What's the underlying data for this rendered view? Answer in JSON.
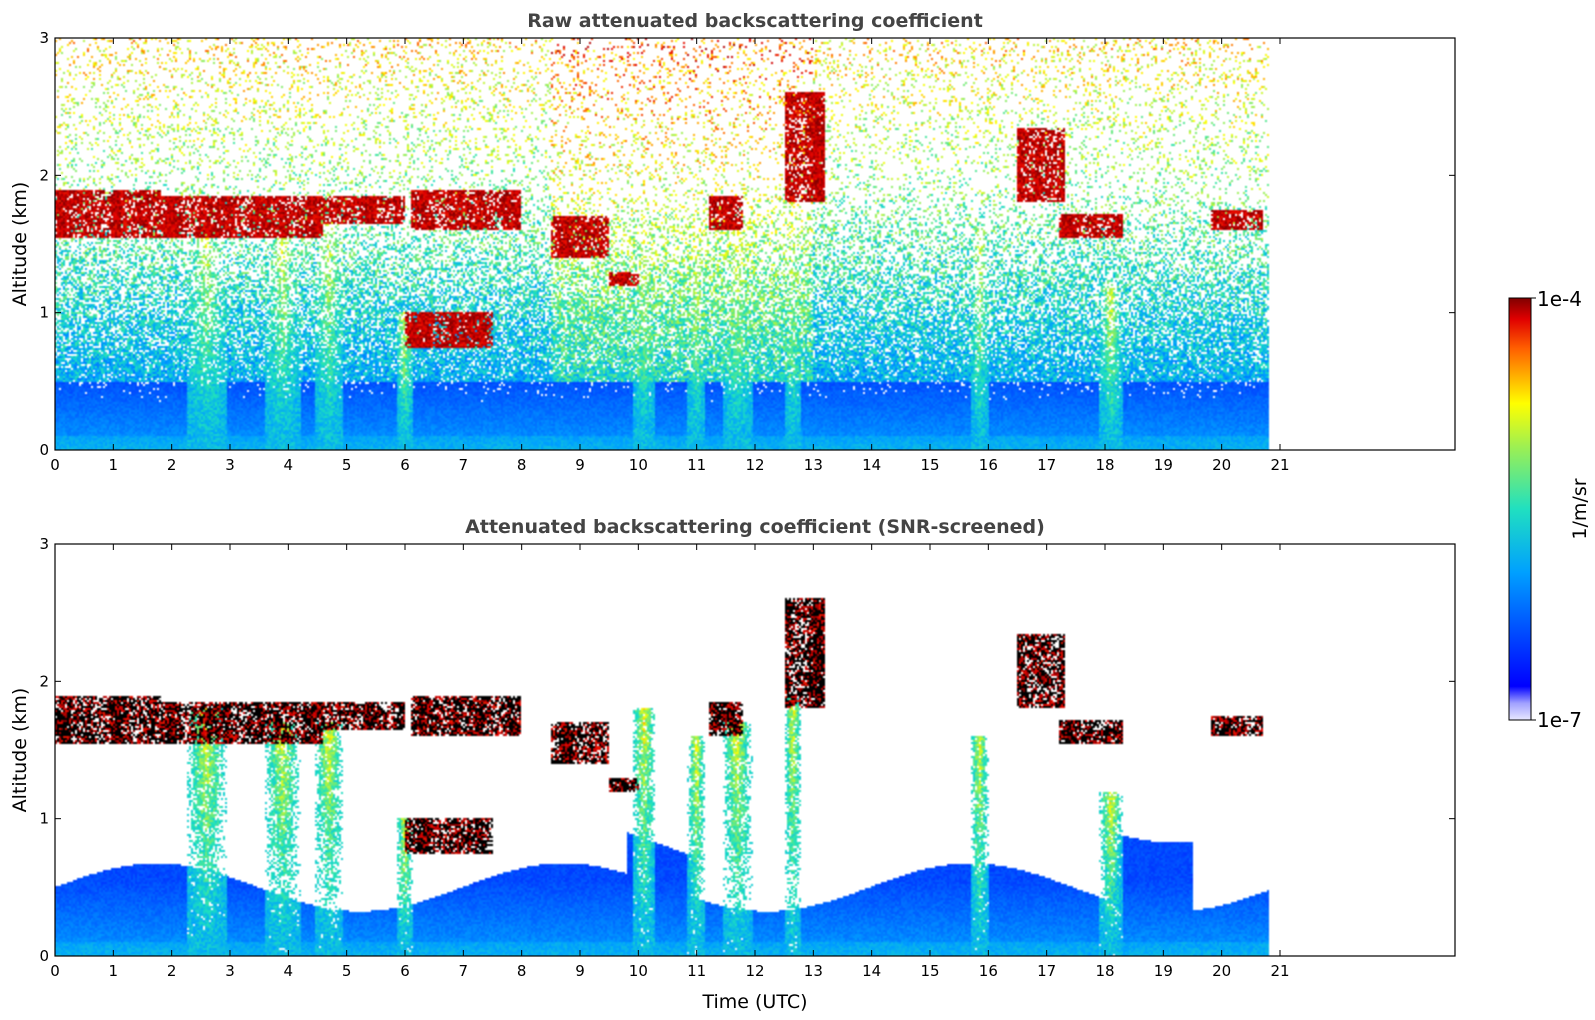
{
  "chart_data": [
    {
      "type": "heatmap",
      "title": "Raw attenuated backscattering coefficient",
      "xlabel": "",
      "ylabel": "Altitude (km)",
      "xlim": [
        0,
        24
      ],
      "ylim": [
        0,
        3
      ],
      "x_ticks": [
        0,
        1,
        2,
        3,
        4,
        5,
        6,
        7,
        8,
        9,
        10,
        11,
        12,
        13,
        14,
        15,
        16,
        17,
        18,
        19,
        20,
        21
      ],
      "x_tick_labels": [
        "0",
        "1",
        "2",
        "3",
        "4",
        "5",
        "6",
        "7",
        "8",
        "9",
        "10",
        "11",
        "12",
        "13",
        "14",
        "15",
        "16",
        "17",
        "18",
        "19",
        "20",
        "21"
      ],
      "y_ticks": [
        0,
        1,
        2,
        3
      ],
      "y_tick_labels": [
        "0",
        "1",
        "2",
        "3"
      ],
      "data_end_time": 20.8,
      "screened": false
    },
    {
      "type": "heatmap",
      "title": "Attenuated backscattering coefficient (SNR-screened)",
      "xlabel": "Time (UTC)",
      "ylabel": "Altitude (km)",
      "xlim": [
        0,
        24
      ],
      "ylim": [
        0,
        3
      ],
      "x_ticks": [
        0,
        1,
        2,
        3,
        4,
        5,
        6,
        7,
        8,
        9,
        10,
        11,
        12,
        13,
        14,
        15,
        16,
        17,
        18,
        19,
        20,
        21
      ],
      "x_tick_labels": [
        "0",
        "1",
        "2",
        "3",
        "4",
        "5",
        "6",
        "7",
        "8",
        "9",
        "10",
        "11",
        "12",
        "13",
        "14",
        "15",
        "16",
        "17",
        "18",
        "19",
        "20",
        "21"
      ],
      "y_ticks": [
        0,
        1,
        2,
        3
      ],
      "y_tick_labels": [
        "0",
        "1",
        "2",
        "3"
      ],
      "data_end_time": 20.8,
      "screened": true
    }
  ],
  "colorbar": {
    "label": "1/m/sr",
    "min_label": "1e-7",
    "max_label": "1e-4",
    "colormap": "jet",
    "scale": "log"
  },
  "cloud_layers": [
    {
      "t0": 0.0,
      "t1": 1.8,
      "z0": 1.55,
      "z1": 1.9
    },
    {
      "t0": 1.8,
      "t1": 4.6,
      "z0": 1.55,
      "z1": 1.85
    },
    {
      "t0": 4.6,
      "t1": 6.0,
      "z0": 1.65,
      "z1": 1.85
    },
    {
      "t0": 6.1,
      "t1": 8.0,
      "z0": 1.6,
      "z1": 1.9
    },
    {
      "t0": 8.5,
      "t1": 9.5,
      "z0": 1.4,
      "z1": 1.7
    },
    {
      "t0": 9.5,
      "t1": 10.0,
      "z0": 1.2,
      "z1": 1.3
    },
    {
      "t0": 11.2,
      "t1": 11.8,
      "z0": 1.6,
      "z1": 1.85
    },
    {
      "t0": 12.5,
      "t1": 13.2,
      "z0": 1.8,
      "z1": 2.6
    },
    {
      "t0": 16.5,
      "t1": 17.3,
      "z0": 1.8,
      "z1": 2.35
    },
    {
      "t0": 17.2,
      "t1": 18.3,
      "z0": 1.55,
      "z1": 1.72
    },
    {
      "t0": 6.0,
      "t1": 7.5,
      "z0": 0.75,
      "z1": 1.0
    },
    {
      "t0": 19.8,
      "t1": 20.7,
      "z0": 1.6,
      "z1": 1.75
    }
  ],
  "precip_streaks": [
    {
      "t": 2.6,
      "z": 1.8,
      "w": 0.35
    },
    {
      "t": 3.9,
      "z": 1.7,
      "w": 0.3
    },
    {
      "t": 4.7,
      "z": 1.7,
      "w": 0.25
    },
    {
      "t": 6.0,
      "z": 1.0,
      "w": 0.15
    },
    {
      "t": 10.1,
      "z": 1.8,
      "w": 0.2
    },
    {
      "t": 11.0,
      "z": 1.6,
      "w": 0.15
    },
    {
      "t": 11.7,
      "z": 1.7,
      "w": 0.25
    },
    {
      "t": 12.65,
      "z": 1.9,
      "w": 0.15
    },
    {
      "t": 15.85,
      "z": 1.6,
      "w": 0.15
    },
    {
      "t": 18.1,
      "z": 1.2,
      "w": 0.2
    }
  ]
}
